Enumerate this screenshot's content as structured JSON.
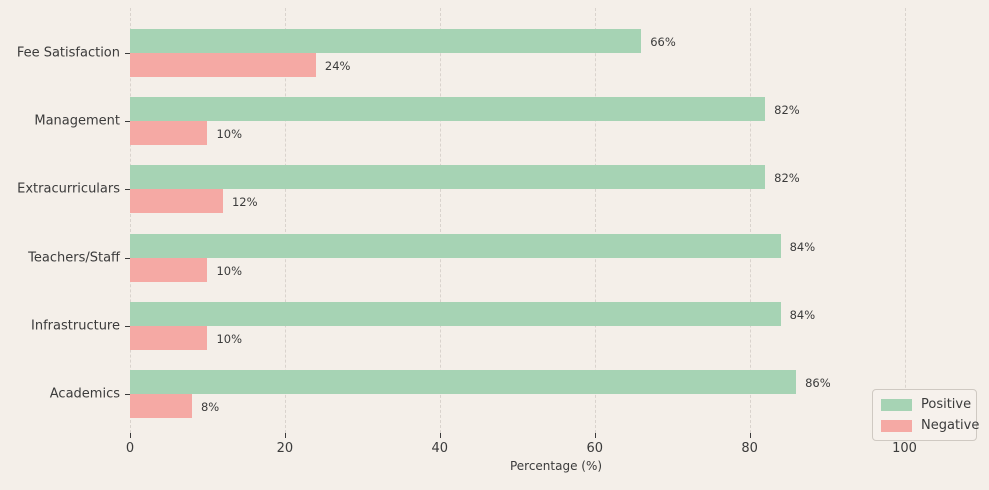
{
  "chart_data": {
    "type": "bar",
    "orientation": "horizontal",
    "title": "",
    "xlabel": "Percentage (%)",
    "ylabel": "",
    "categories": [
      "Fee Satisfaction",
      "Management",
      "Extracurriculars",
      "Teachers/Staff",
      "Infrastructure",
      "Academics"
    ],
    "series": [
      {
        "name": "Positive",
        "color": "#a6d3b4",
        "values": [
          66,
          82,
          82,
          84,
          84,
          86
        ]
      },
      {
        "name": "Negative",
        "color": "#f5a9a4",
        "values": [
          24,
          10,
          12,
          10,
          10,
          8
        ]
      }
    ],
    "value_label_format": "{v}%",
    "x_ticks": [
      0,
      20,
      40,
      60,
      80,
      100
    ],
    "xlim": [
      0,
      110
    ],
    "grid": "vertical-dashed",
    "legend_position": "lower-right",
    "colors": {
      "background": "#f4efe9",
      "gridline": "#d9d3cd",
      "text": "#3b3b3b",
      "legend_background": "#f6f1ec",
      "legend_border": "#cfc9c2"
    }
  }
}
